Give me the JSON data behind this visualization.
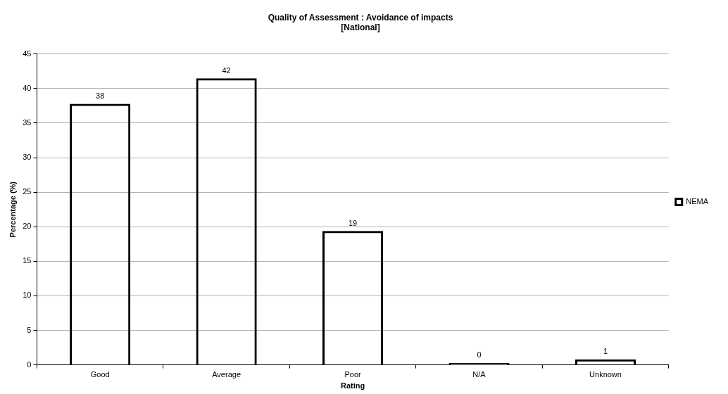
{
  "chart_data": {
    "type": "bar",
    "title": [
      "Quality of Assessment : Avoidance of impacts",
      "[National]"
    ],
    "xlabel": "Rating",
    "ylabel": "Percentage (%)",
    "categories": [
      "Good",
      "Average",
      "Poor",
      "N/A",
      "Unknown"
    ],
    "series": [
      {
        "name": "NEMA",
        "color": "#000000",
        "values": [
          37.8,
          41.5,
          19.4,
          0.3,
          0.8
        ],
        "value_labels": [
          "38",
          "42",
          "19",
          "0",
          "1"
        ]
      }
    ],
    "ylim": [
      0,
      45
    ],
    "yticks": [
      0,
      5,
      10,
      15,
      20,
      25,
      30,
      35,
      40,
      45
    ],
    "grid": "y",
    "legend": "right"
  }
}
